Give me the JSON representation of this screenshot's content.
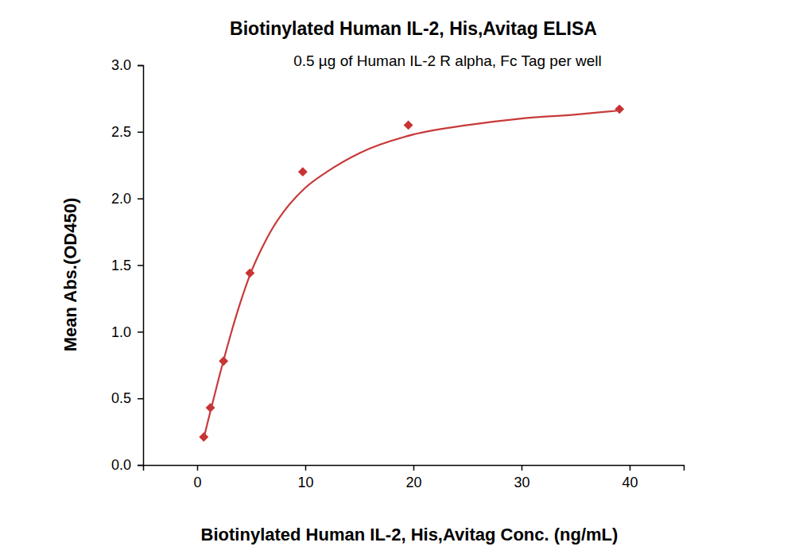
{
  "chart_data": {
    "type": "scatter",
    "title": "Biotinylated Human IL-2, His,Avitag ELISA",
    "subtitle": "0.5 µg of Human IL-2 R alpha, Fc Tag per well",
    "x_label": "Biotinylated Human IL-2, His,Avitag Conc. (ng/mL)",
    "y_label": "Mean Abs.(OD450)",
    "xlim": [
      -5,
      45
    ],
    "xticks": [
      0,
      10,
      20,
      30,
      40
    ],
    "ylim": [
      0,
      3
    ],
    "yticks": [
      {
        "value": 0,
        "label": "0.0"
      },
      {
        "value": 0.5,
        "label": "0.5"
      },
      {
        "value": 1,
        "label": "1.0"
      },
      {
        "value": 1.5,
        "label": "1.5"
      },
      {
        "value": 2,
        "label": "2.0"
      },
      {
        "value": 2.5,
        "label": "2.5"
      },
      {
        "value": 3,
        "label": "3.0"
      }
    ],
    "grid": false,
    "series": [
      {
        "type": "scatter",
        "marker": "diamond",
        "color": "#c83232",
        "x": [
          0.61,
          1.22,
          2.44,
          4.88,
          9.77,
          19.53,
          39.06
        ],
        "values": [
          0.21,
          0.43,
          0.78,
          1.44,
          2.2,
          2.55,
          2.67
        ]
      },
      {
        "type": "line",
        "line_style": "solid",
        "color": "#c83a3a",
        "x": [
          0.61,
          1,
          2,
          3,
          4,
          5,
          6,
          7,
          8,
          10,
          12,
          15,
          20,
          25,
          30,
          35,
          39.06
        ],
        "values": [
          0.2,
          0.33,
          0.65,
          0.95,
          1.22,
          1.45,
          1.63,
          1.78,
          1.9,
          2.08,
          2.2,
          2.34,
          2.48,
          2.55,
          2.6,
          2.63,
          2.66
        ]
      }
    ]
  }
}
